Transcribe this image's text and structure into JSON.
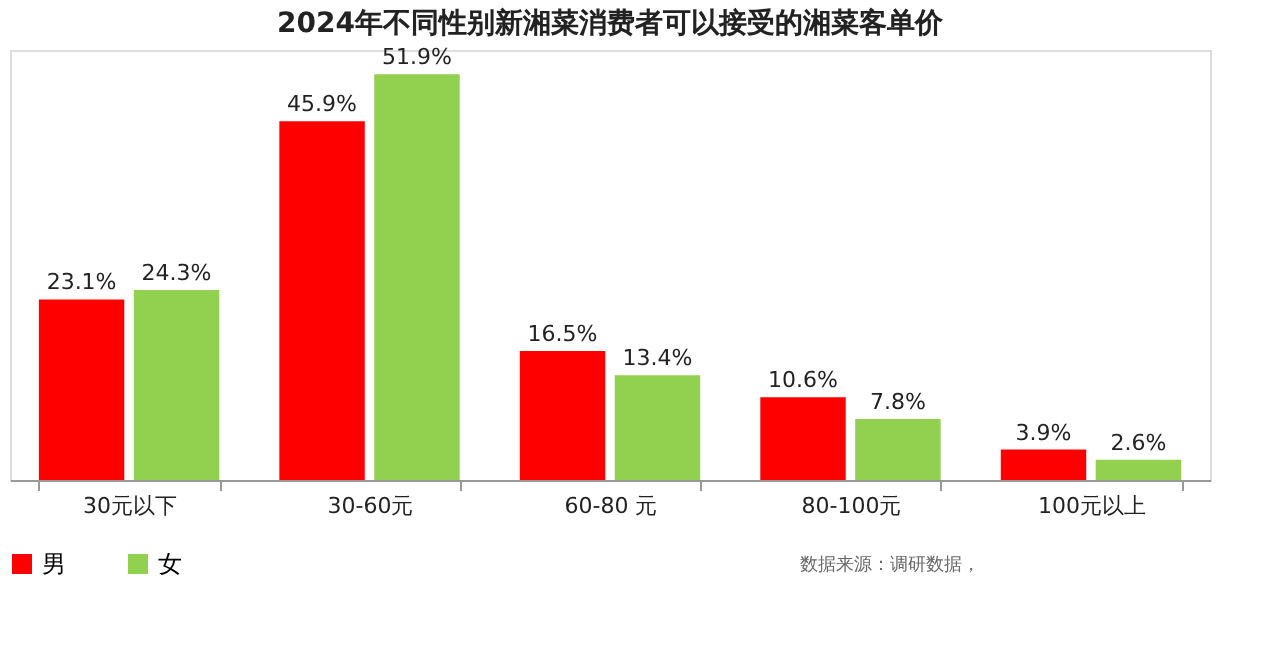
{
  "chart_data": {
    "type": "bar",
    "title": "2024年不同性别新湘菜消费者可以接受的湘菜客单价",
    "categories": [
      "30元以下",
      "30-60元",
      "60-80 元",
      "80-100元",
      "100元以上"
    ],
    "series": [
      {
        "name": "男",
        "color": "#ff0000",
        "values": [
          23.1,
          45.9,
          16.5,
          10.6,
          3.9
        ],
        "value_labels": [
          "23.1%",
          "45.9%",
          "16.5%",
          "10.6%",
          "3.9%"
        ]
      },
      {
        "name": "女",
        "color": "#92d050",
        "values": [
          24.3,
          51.9,
          13.4,
          7.8,
          2.6
        ],
        "value_labels": [
          "24.3%",
          "51.9%",
          "13.4%",
          "7.8%",
          "2.6%"
        ]
      }
    ],
    "tick_labels": "x",
    "grid": false,
    "legend": "bottom",
    "annotations": [
      "数据来源：调研数据，"
    ]
  }
}
